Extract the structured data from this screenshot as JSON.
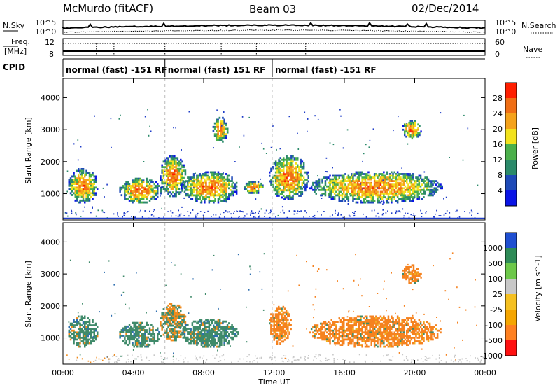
{
  "header": {
    "station": "McMurdo (fitACF)",
    "beam": "Beam 03",
    "date": "02/Dec/2014"
  },
  "summary": {
    "nsky_label": "N.Sky",
    "nsearch_label": "N.Search",
    "freq_label_1": "Freq.",
    "freq_label_2": "[MHz]",
    "nave_label": "Nave",
    "cpid_label": "CPID",
    "nsky_ticks": [
      "10^5",
      "10^0"
    ],
    "nsearch_ticks": [
      "10^5",
      "10^0"
    ],
    "freq_ticks": [
      "12",
      "8"
    ],
    "nave_ticks": [
      "60",
      "0"
    ],
    "cpid_segments": [
      {
        "start_hour": 0,
        "end_hour": 5.8,
        "label": "normal (fast) -151 RF"
      },
      {
        "start_hour": 5.8,
        "end_hour": 11.9,
        "label": "normal (fast) 151 RF"
      },
      {
        "start_hour": 11.9,
        "end_hour": 24,
        "label": "normal (fast) -151 RF"
      }
    ]
  },
  "chart_data": [
    {
      "type": "heatmap",
      "title": "",
      "xlabel": "Time UT",
      "ylabel": "Slant Range [km]",
      "colorbar_label": "Power [dB]",
      "xlim": [
        0,
        24
      ],
      "ylim": [
        180,
        4600
      ],
      "x_ticks": [
        "00:00",
        "04:00",
        "08:00",
        "12:00",
        "16:00",
        "20:00",
        "00:00"
      ],
      "y_ticks": [
        1000,
        2000,
        3000,
        4000
      ],
      "colorbar_ticks": [
        "28",
        "24",
        "20",
        "16",
        "12",
        "8",
        "4"
      ],
      "colorbar_colors": [
        "#0a14e6",
        "#1e4ab8",
        "#2b8a6a",
        "#4bb04b",
        "#f2e21c",
        "#f5a21a",
        "#f06e14",
        "#ff1e00"
      ],
      "region_blobs_km": [
        {
          "t0": 0.3,
          "t1": 2.0,
          "r0": 700,
          "r1": 1800
        },
        {
          "t0": 3.2,
          "t1": 5.6,
          "r0": 700,
          "r1": 1500
        },
        {
          "t0": 5.5,
          "t1": 7.0,
          "r0": 900,
          "r1": 2200
        },
        {
          "t0": 6.7,
          "t1": 10.0,
          "r0": 700,
          "r1": 1700
        },
        {
          "t0": 10.3,
          "t1": 11.4,
          "r0": 1000,
          "r1": 1400
        },
        {
          "t0": 11.7,
          "t1": 14.0,
          "r0": 800,
          "r1": 2200
        },
        {
          "t0": 14.0,
          "t1": 21.6,
          "r0": 700,
          "r1": 1700
        },
        {
          "t0": 8.5,
          "t1": 9.4,
          "r0": 2600,
          "r1": 3400
        },
        {
          "t0": 19.3,
          "t1": 20.4,
          "r0": 2700,
          "r1": 3300
        }
      ]
    },
    {
      "type": "heatmap",
      "title": "",
      "xlabel": "Time UT",
      "ylabel": "Slant Range [km]",
      "colorbar_label": "Velocity [m s^-1]",
      "xlim": [
        0,
        24
      ],
      "ylim": [
        180,
        4600
      ],
      "x_ticks": [
        "00:00",
        "04:00",
        "08:00",
        "12:00",
        "16:00",
        "20:00",
        "00:00"
      ],
      "y_ticks": [
        1000,
        2000,
        3000,
        4000
      ],
      "colorbar_ticks": [
        "1000",
        "500",
        "100",
        "25",
        "-25",
        "-100",
        "-500",
        "-1000"
      ],
      "colorbar_colors": [
        "#ff1010",
        "#ff8020",
        "#f5a500",
        "#f5c020",
        "#c8c8c8",
        "#6dc84a",
        "#2e8b57",
        "#1f4fd1"
      ],
      "region_blobs_km": [
        {
          "t0": 0.3,
          "t1": 2.0,
          "r0": 700,
          "r1": 1700,
          "sign": "positive"
        },
        {
          "t0": 3.2,
          "t1": 5.6,
          "r0": 700,
          "r1": 1500,
          "sign": "positive"
        },
        {
          "t0": 5.5,
          "t1": 7.0,
          "r0": 900,
          "r1": 2100,
          "sign": "mixed"
        },
        {
          "t0": 6.7,
          "t1": 10.0,
          "r0": 700,
          "r1": 1600,
          "sign": "positive"
        },
        {
          "t0": 11.7,
          "t1": 13.0,
          "r0": 800,
          "r1": 2000,
          "sign": "negative"
        },
        {
          "t0": 14.0,
          "t1": 21.6,
          "r0": 700,
          "r1": 1700,
          "sign": "negative"
        },
        {
          "t0": 19.3,
          "t1": 20.4,
          "r0": 2700,
          "r1": 3300,
          "sign": "negative"
        }
      ]
    }
  ]
}
